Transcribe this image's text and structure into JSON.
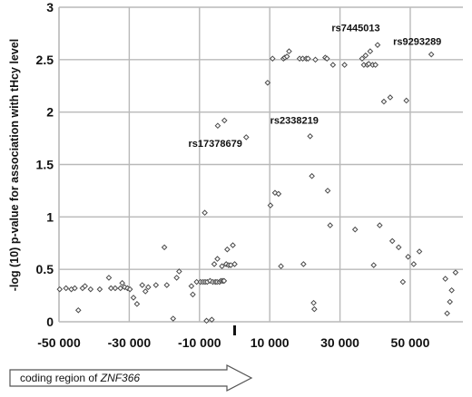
{
  "chart_data": {
    "type": "scatter",
    "title": "",
    "xlabel": "",
    "ylabel": "-log (10) p-value for association with tHcy level",
    "xlim": [
      -50000,
      65000
    ],
    "ylim": [
      0,
      3
    ],
    "xticks": [
      -50000,
      -30000,
      -10000,
      10000,
      30000,
      50000
    ],
    "xtick_labels": [
      "-50 000",
      "-30 000",
      "-10 000",
      "10 000",
      "30 000",
      "50 000"
    ],
    "yticks": [
      0,
      0.5,
      1,
      1.5,
      2,
      2.5,
      3
    ],
    "ytick_labels": [
      "0",
      "0.5",
      "1",
      "1.5",
      "2",
      "2.5",
      "3"
    ],
    "grid": true,
    "marker": "diamond",
    "points": [
      {
        "x": -49800,
        "y": 0.31
      },
      {
        "x": -48000,
        "y": 0.32
      },
      {
        "x": -46500,
        "y": 0.31
      },
      {
        "x": -45500,
        "y": 0.32
      },
      {
        "x": -44500,
        "y": 0.11
      },
      {
        "x": -43300,
        "y": 0.32
      },
      {
        "x": -42600,
        "y": 0.34
      },
      {
        "x": -41000,
        "y": 0.31
      },
      {
        "x": -38400,
        "y": 0.31
      },
      {
        "x": -35800,
        "y": 0.42
      },
      {
        "x": -35200,
        "y": 0.32
      },
      {
        "x": -34000,
        "y": 0.32
      },
      {
        "x": -32500,
        "y": 0.32
      },
      {
        "x": -32000,
        "y": 0.37
      },
      {
        "x": -31300,
        "y": 0.33
      },
      {
        "x": -30500,
        "y": 0.32
      },
      {
        "x": -29800,
        "y": 0.31
      },
      {
        "x": -28800,
        "y": 0.23
      },
      {
        "x": -27800,
        "y": 0.17
      },
      {
        "x": -26300,
        "y": 0.35
      },
      {
        "x": -25400,
        "y": 0.29
      },
      {
        "x": -24600,
        "y": 0.33
      },
      {
        "x": -22400,
        "y": 0.35
      },
      {
        "x": -20000,
        "y": 0.71
      },
      {
        "x": -19300,
        "y": 0.35
      },
      {
        "x": -17500,
        "y": 0.03
      },
      {
        "x": -16500,
        "y": 0.42
      },
      {
        "x": -15800,
        "y": 0.48
      },
      {
        "x": -12300,
        "y": 0.34
      },
      {
        "x": -11900,
        "y": 0.26
      },
      {
        "x": -10800,
        "y": 0.38
      },
      {
        "x": -9700,
        "y": 0.38
      },
      {
        "x": -9000,
        "y": 0.38
      },
      {
        "x": -8400,
        "y": 0.38
      },
      {
        "x": -8500,
        "y": 1.04
      },
      {
        "x": -8000,
        "y": 0.01
      },
      {
        "x": -7800,
        "y": 0.38
      },
      {
        "x": -7000,
        "y": 0.39
      },
      {
        "x": -6500,
        "y": 0.02
      },
      {
        "x": -6200,
        "y": 0.38
      },
      {
        "x": -5800,
        "y": 0.55
      },
      {
        "x": -5500,
        "y": 0.38
      },
      {
        "x": -5000,
        "y": 0.38
      },
      {
        "x": -4900,
        "y": 0.6
      },
      {
        "x": -4800,
        "y": 1.87
      },
      {
        "x": -4300,
        "y": 0.38
      },
      {
        "x": -3900,
        "y": 0.39
      },
      {
        "x": -3600,
        "y": 0.53
      },
      {
        "x": -3400,
        "y": 0.39
      },
      {
        "x": -3000,
        "y": 0.39
      },
      {
        "x": -2900,
        "y": 1.92
      },
      {
        "x": -2400,
        "y": 0.55
      },
      {
        "x": -2100,
        "y": 0.69
      },
      {
        "x": -1700,
        "y": 0.54
      },
      {
        "x": -1100,
        "y": 0.54
      },
      {
        "x": -500,
        "y": 0.73
      },
      {
        "x": 0,
        "y": 0.55
      },
      {
        "x": 3300,
        "y": 1.76
      },
      {
        "x": 9400,
        "y": 2.28
      },
      {
        "x": 10200,
        "y": 1.11
      },
      {
        "x": 10800,
        "y": 2.51
      },
      {
        "x": 11500,
        "y": 1.23
      },
      {
        "x": 12500,
        "y": 1.22
      },
      {
        "x": 13200,
        "y": 0.53
      },
      {
        "x": 13900,
        "y": 2.51
      },
      {
        "x": 14300,
        "y": 2.52
      },
      {
        "x": 14900,
        "y": 2.53
      },
      {
        "x": 15500,
        "y": 2.58
      },
      {
        "x": 18500,
        "y": 2.51
      },
      {
        "x": 19400,
        "y": 2.51
      },
      {
        "x": 19600,
        "y": 0.55
      },
      {
        "x": 20400,
        "y": 2.51
      },
      {
        "x": 20900,
        "y": 2.51
      },
      {
        "x": 21500,
        "y": 1.77
      },
      {
        "x": 22000,
        "y": 1.39
      },
      {
        "x": 22500,
        "y": 0.18
      },
      {
        "x": 22700,
        "y": 0.12
      },
      {
        "x": 23000,
        "y": 2.5
      },
      {
        "x": 25800,
        "y": 2.52
      },
      {
        "x": 26300,
        "y": 2.51
      },
      {
        "x": 26500,
        "y": 1.25
      },
      {
        "x": 27200,
        "y": 0.92
      },
      {
        "x": 28000,
        "y": 2.45
      },
      {
        "x": 31300,
        "y": 2.45
      },
      {
        "x": 34300,
        "y": 0.88
      },
      {
        "x": 36300,
        "y": 2.51
      },
      {
        "x": 36800,
        "y": 2.45
      },
      {
        "x": 37300,
        "y": 2.54
      },
      {
        "x": 37800,
        "y": 2.45
      },
      {
        "x": 38200,
        "y": 2.46
      },
      {
        "x": 38600,
        "y": 2.58
      },
      {
        "x": 39300,
        "y": 2.45
      },
      {
        "x": 39600,
        "y": 0.54
      },
      {
        "x": 40100,
        "y": 2.45
      },
      {
        "x": 40700,
        "y": 2.64
      },
      {
        "x": 41300,
        "y": 0.92
      },
      {
        "x": 42500,
        "y": 2.1
      },
      {
        "x": 44300,
        "y": 2.14
      },
      {
        "x": 44900,
        "y": 0.77
      },
      {
        "x": 46700,
        "y": 0.71
      },
      {
        "x": 47900,
        "y": 0.38
      },
      {
        "x": 48900,
        "y": 2.11
      },
      {
        "x": 49400,
        "y": 0.62
      },
      {
        "x": 51000,
        "y": 0.55
      },
      {
        "x": 52600,
        "y": 0.67
      },
      {
        "x": 56000,
        "y": 2.55
      },
      {
        "x": 60000,
        "y": 0.41
      },
      {
        "x": 60500,
        "y": 0.08
      },
      {
        "x": 61300,
        "y": 0.19
      },
      {
        "x": 61800,
        "y": 0.3
      },
      {
        "x": 62900,
        "y": 0.47
      }
    ],
    "annotations": [
      {
        "text": "rs17378679",
        "x": -5500,
        "y": 1.67
      },
      {
        "text": "rs2338219",
        "x": 17000,
        "y": 1.89
      },
      {
        "text": "rs7445013",
        "x": 34500,
        "y": 2.77
      },
      {
        "text": "rs9293289",
        "x": 52000,
        "y": 2.64
      }
    ],
    "marker_tick_x": 0,
    "region_arrow": {
      "label_prefix": "coding region of ",
      "label_gene": "ZNF366",
      "from_x": -50000,
      "to_x": 0
    }
  }
}
